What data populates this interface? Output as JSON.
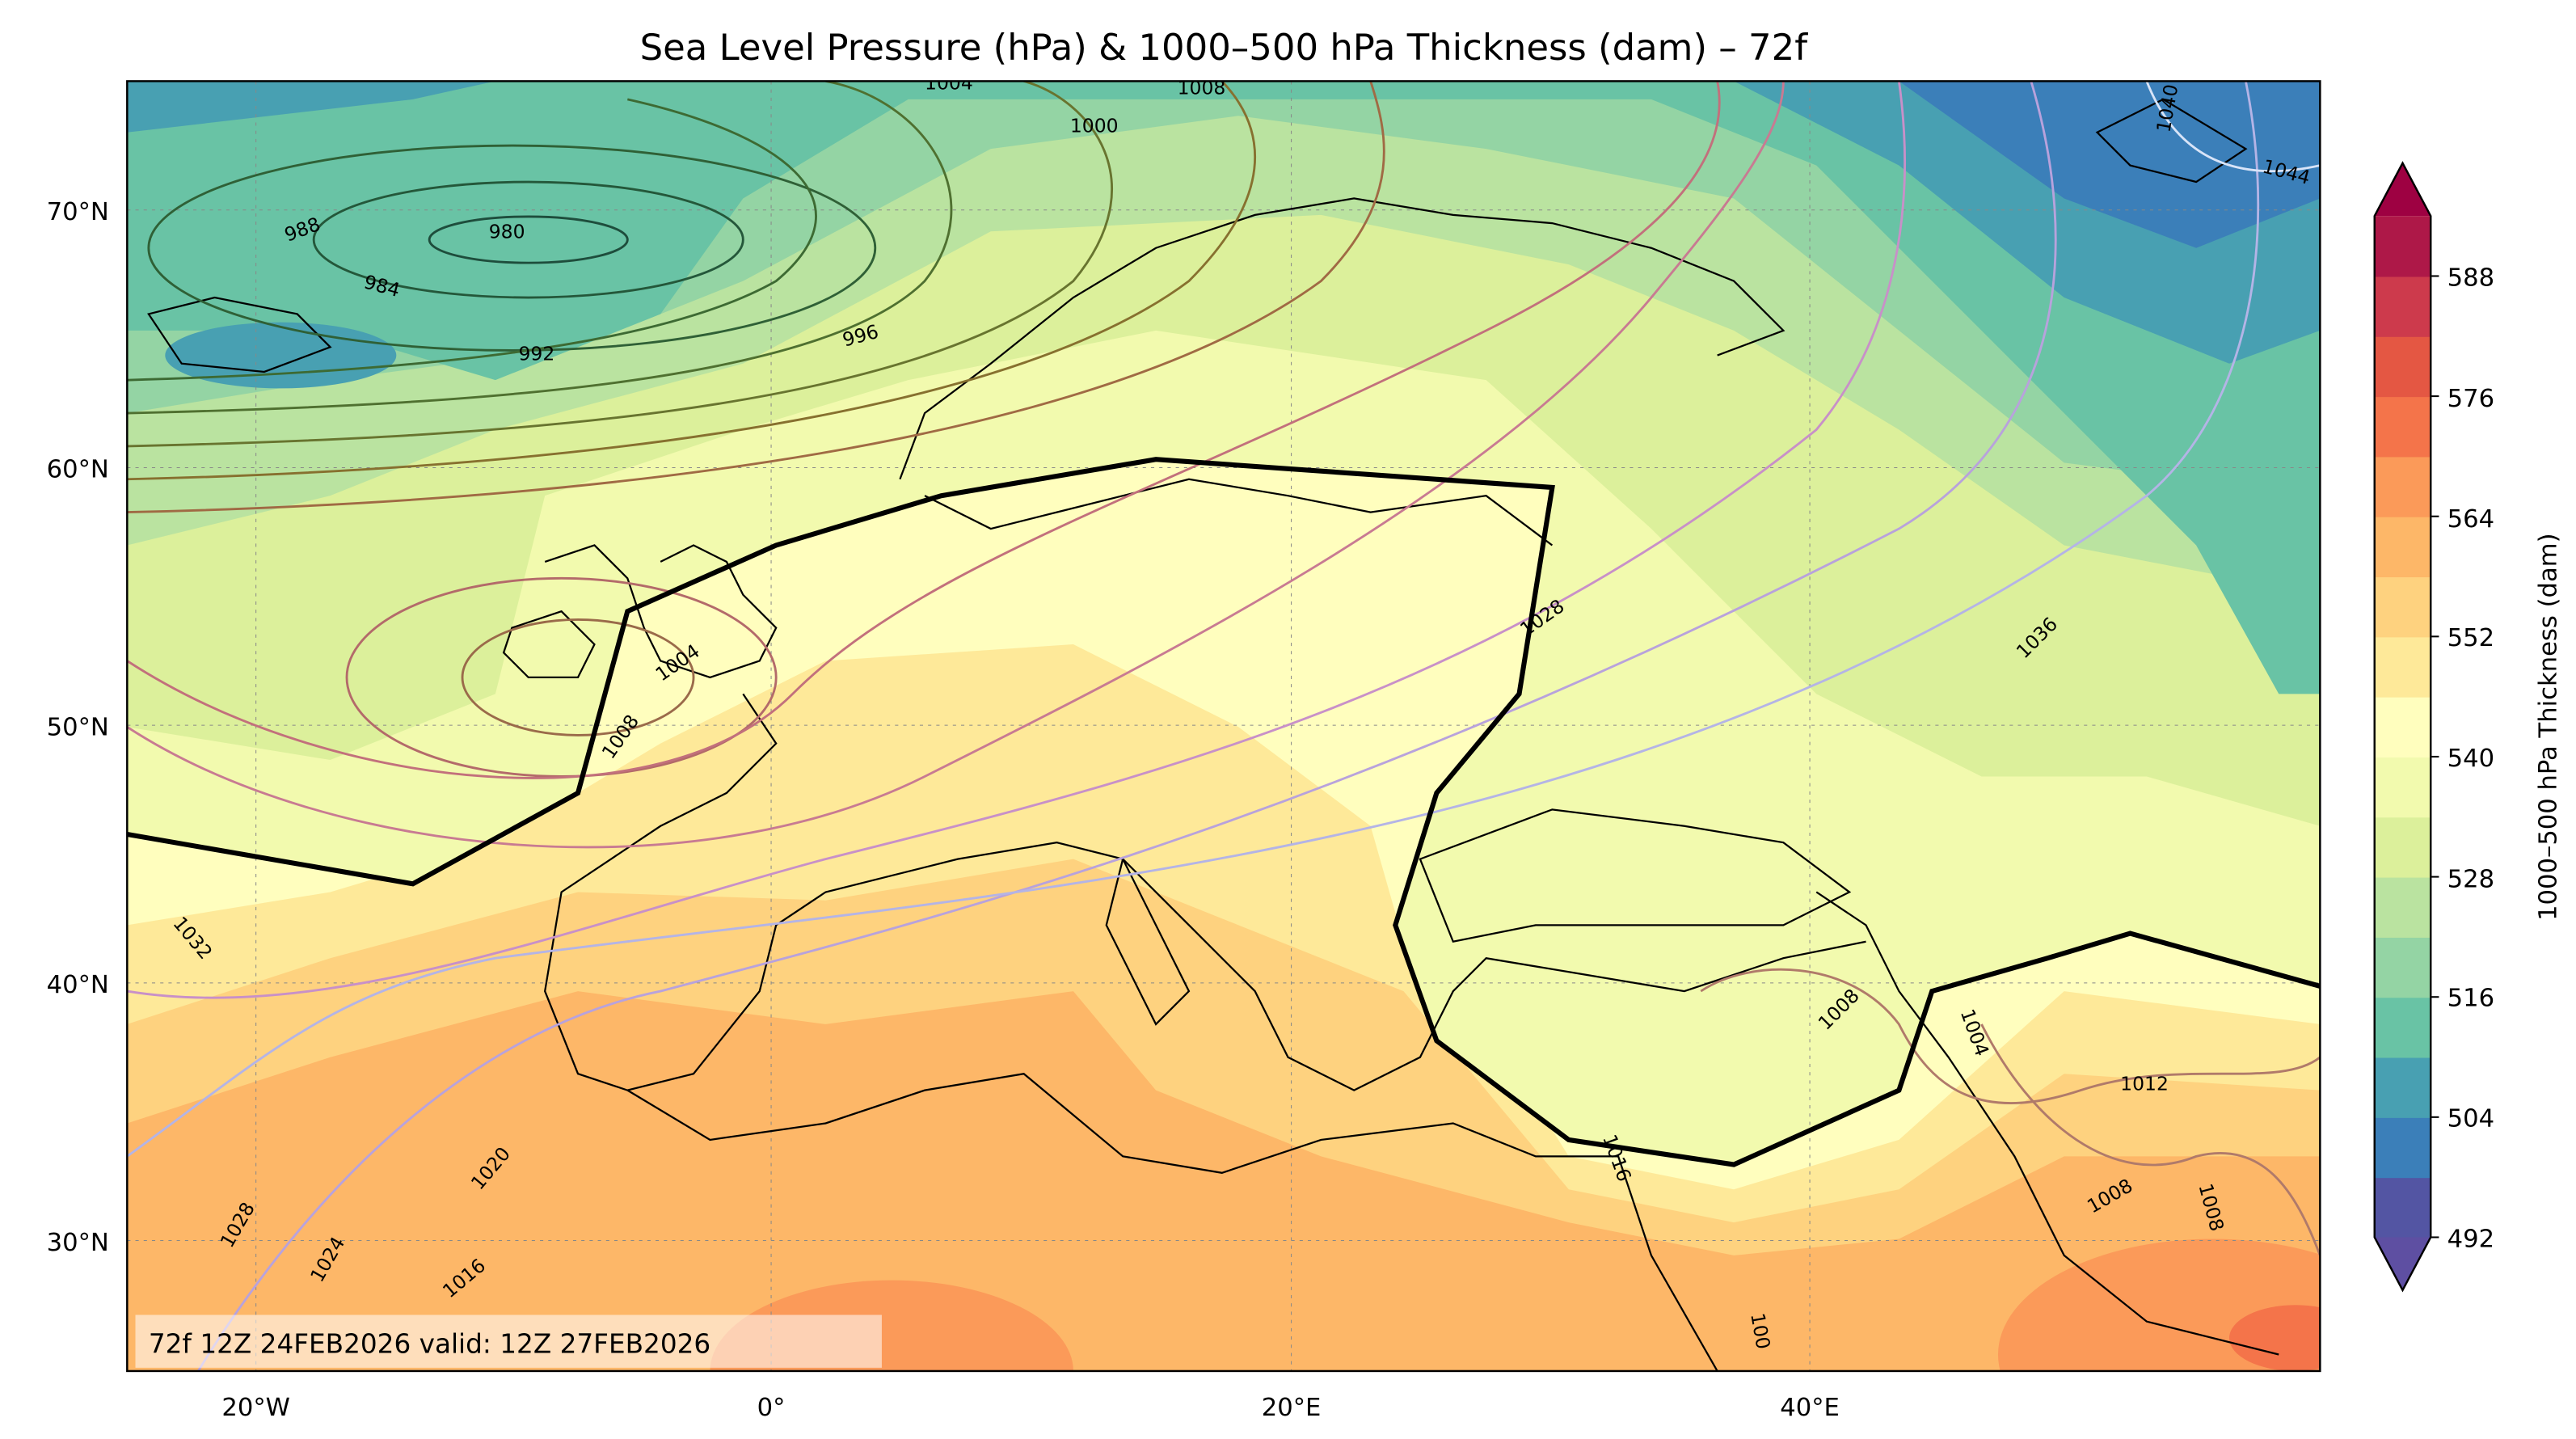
{
  "title": "Sea Level Pressure (hPa) & 1000–500 hPa Thickness (dam) – 72f",
  "info_box": "72f 12Z 24FEB2026 valid: 12Z 27FEB2026",
  "axes": {
    "lon_labels": [
      "20°W",
      "0°",
      "20°E",
      "40°E"
    ],
    "lat_labels": [
      "70°N",
      "60°N",
      "50°N",
      "40°N",
      "30°N"
    ],
    "lon_range": [
      -25,
      60
    ],
    "lat_range": [
      25,
      75
    ]
  },
  "colorbar": {
    "label": "1000–500 hPa Thickness (dam)",
    "tick_labels": [
      "588",
      "576",
      "564",
      "552",
      "540",
      "528",
      "516",
      "504",
      "492"
    ],
    "levels_min": 492,
    "level_step": 6,
    "colors": [
      "#5355a3",
      "#3b7fb9",
      "#48a0b2",
      "#69c3a5",
      "#94d4a4",
      "#bae3a0",
      "#dcf09b",
      "#f2faae",
      "#fffebe",
      "#fee999",
      "#fed27f",
      "#fdb768",
      "#fb9a59",
      "#f4744a",
      "#e45743",
      "#cd3a4c",
      "#ae1848"
    ],
    "under_color": "#5e4fa2",
    "over_color": "#9e0142"
  },
  "pressure_labels": [
    "1004",
    "1008",
    "1000",
    "988",
    "980",
    "984",
    "992",
    "996",
    "1004",
    "1008",
    "1028",
    "1036",
    "1032",
    "1028",
    "1024",
    "1020",
    "1016",
    "1008",
    "1004",
    "1012",
    "1008",
    "1008",
    "1016",
    "1040",
    "1044",
    "100"
  ],
  "thickness_line_label": "540 dam (bold)"
}
